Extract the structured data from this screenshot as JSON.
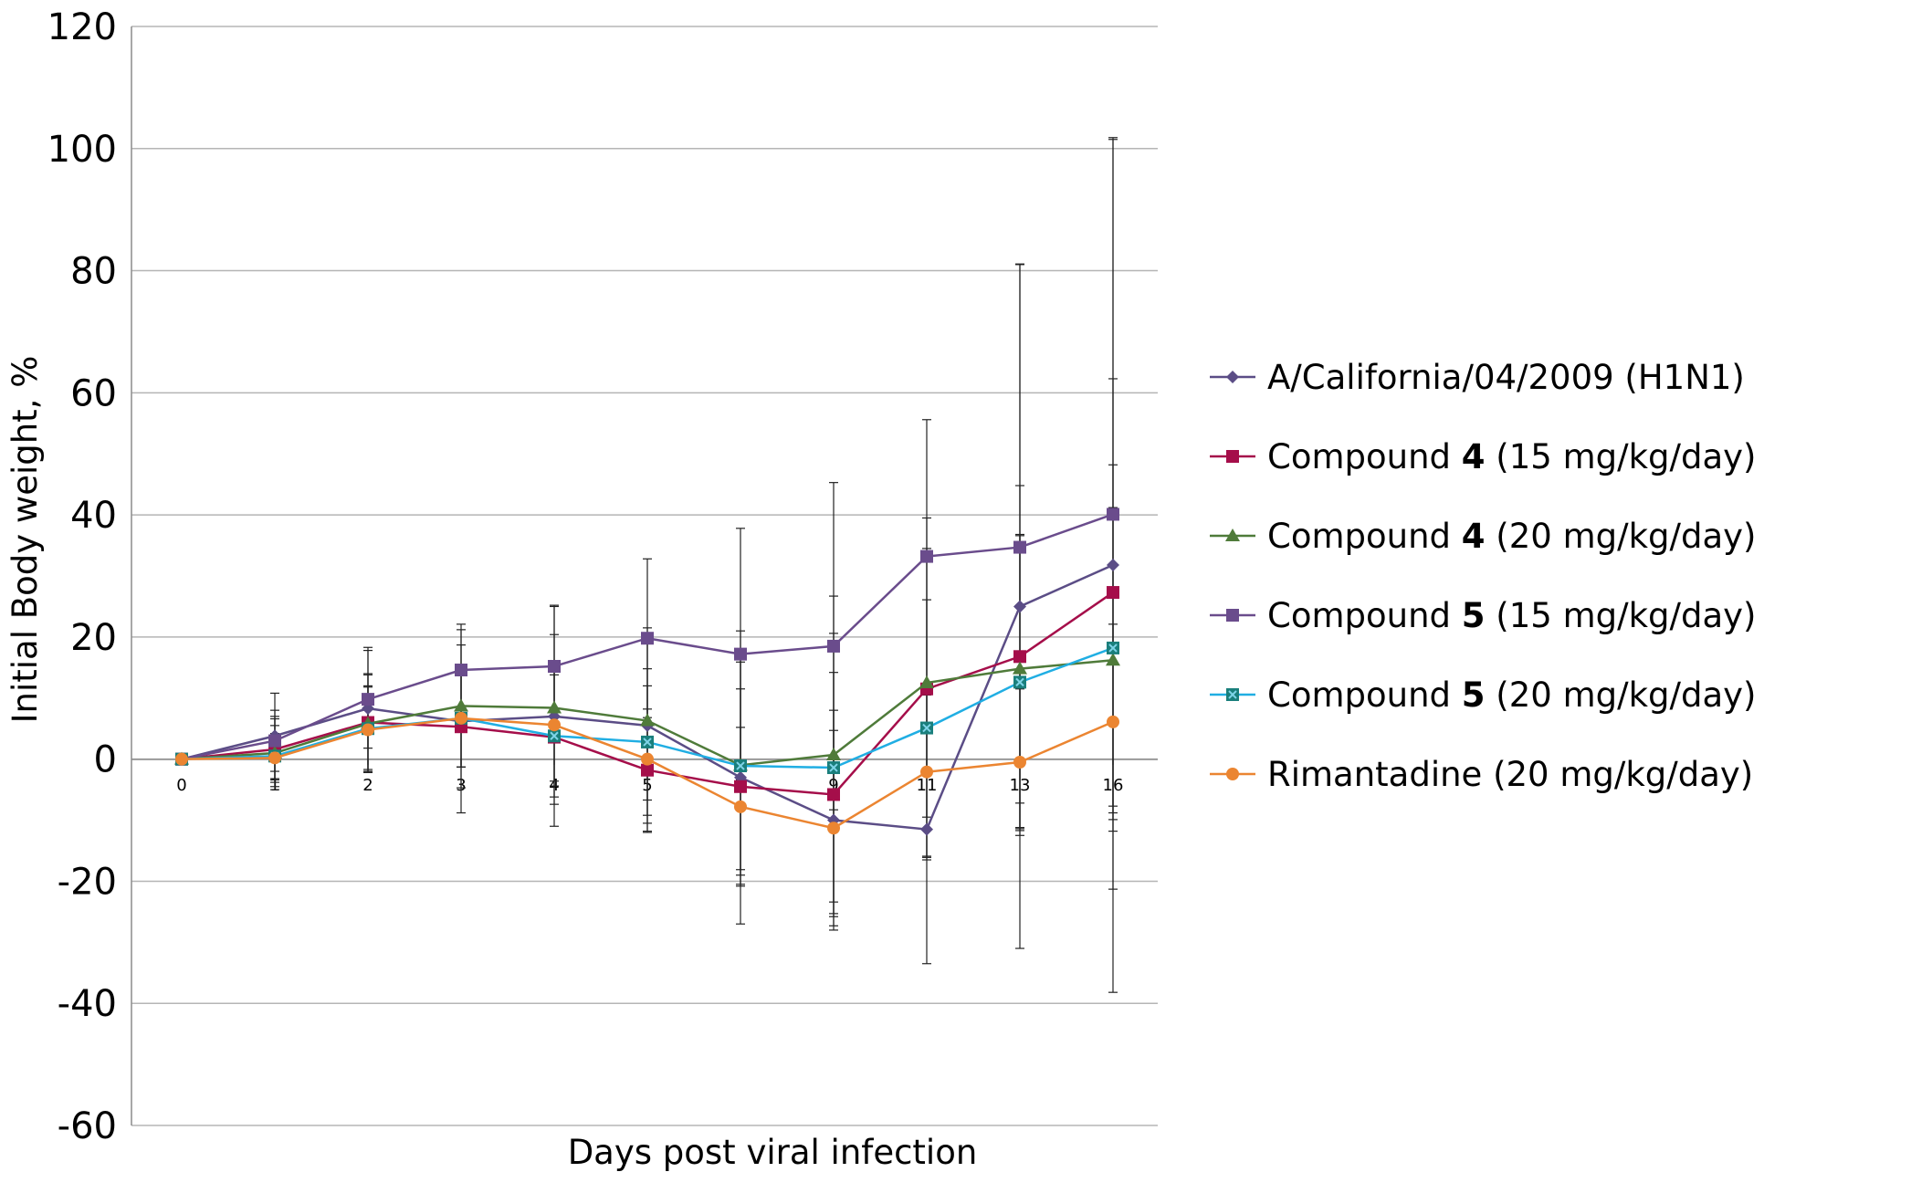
{
  "chart_data": {
    "type": "line",
    "title": "",
    "xlabel": "Days post viral infection",
    "ylabel": "Initial Body weight, %",
    "ylim": [
      -60,
      120
    ],
    "yticks": [
      -60,
      -40,
      -20,
      0,
      20,
      40,
      60,
      80,
      100,
      120
    ],
    "categories": [
      "0",
      "1",
      "2",
      "3",
      "4",
      "5",
      "",
      "9",
      "11",
      "13",
      "16"
    ],
    "grid": true,
    "legend_position": "right",
    "series": [
      {
        "name": "A/California/04/2009 (H1N1)",
        "label_parts": [
          {
            "text": "A/California/04/2009 (H1N1)",
            "bold": false
          }
        ],
        "color": "#5B4D86",
        "marker": "diamond",
        "values": [
          0,
          3.8,
          8.3,
          6.2,
          7.0,
          5.5,
          -3.0,
          -10.0,
          -11.5,
          25.0,
          31.8
        ],
        "errors": [
          0,
          7,
          10,
          15,
          18,
          16,
          24,
          18,
          22,
          56,
          70
        ]
      },
      {
        "name": "Compound 4 (15 mg/kg/day)",
        "label_parts": [
          {
            "text": "Compound ",
            "bold": false
          },
          {
            "text": "4",
            "bold": true
          },
          {
            "text": " (15 mg/kg/day)",
            "bold": false
          }
        ],
        "color": "#A50E4A",
        "marker": "square",
        "values": [
          0,
          1.6,
          6.0,
          5.3,
          3.6,
          -1.8,
          -4.5,
          -5.8,
          11.5,
          16.8,
          27.3
        ],
        "errors": [
          0,
          5,
          8,
          10,
          11,
          10,
          16,
          20,
          28,
          28,
          35
        ]
      },
      {
        "name": "Compound 4 (20 mg/kg/day)",
        "label_parts": [
          {
            "text": "Compound ",
            "bold": false
          },
          {
            "text": "4",
            "bold": true
          },
          {
            "text": " (20 mg/kg/day)",
            "bold": false
          }
        ],
        "color": "#4F7B3A",
        "marker": "triangle",
        "values": [
          0,
          1.0,
          5.8,
          8.7,
          8.4,
          6.3,
          -1.0,
          0.7,
          12.5,
          14.8,
          16.2
        ],
        "errors": [
          0,
          6,
          8,
          10,
          12,
          13,
          18,
          26,
          22,
          22,
          25
        ]
      },
      {
        "name": "Compound 5 (15 mg/kg/day)",
        "label_parts": [
          {
            "text": "Compound ",
            "bold": false
          },
          {
            "text": "5",
            "bold": true
          },
          {
            "text": " (15 mg/kg/day)",
            "bold": false
          }
        ],
        "color": "#6A4C8C",
        "marker": "square",
        "values": [
          0,
          3.0,
          9.8,
          14.6,
          15.2,
          19.8,
          17.2,
          18.5,
          33.2,
          34.7,
          40.1
        ],
        "errors": [
          0,
          5,
          8,
          7.5,
          10,
          13,
          20.6,
          26.8,
          22.4,
          46.4,
          61.4
        ]
      },
      {
        "name": "Compound 5 (20 mg/kg/day)",
        "label_parts": [
          {
            "text": "Compound ",
            "bold": false
          },
          {
            "text": "5",
            "bold": true
          },
          {
            "text": " (20 mg/kg/day)",
            "bold": false
          }
        ],
        "color": "#20AEE3",
        "marker": "square-x",
        "values": [
          0,
          0.5,
          5.0,
          6.7,
          3.8,
          2.8,
          -1.1,
          -1.4,
          5.1,
          12.6,
          18.2
        ],
        "errors": [
          0,
          5,
          7,
          8,
          10,
          12,
          17,
          22,
          21,
          24,
          30
        ]
      },
      {
        "name": "Rimantadine (20 mg/kg/day)",
        "label_parts": [
          {
            "text": "Rimantadine (20 mg/kg/day)",
            "bold": false
          }
        ],
        "color": "#EB8531",
        "marker": "circle",
        "values": [
          0,
          0.2,
          4.8,
          6.7,
          5.6,
          0.0,
          -7.8,
          -11.3,
          -2.1,
          -0.5,
          6.1
        ],
        "errors": [
          0,
          4,
          7,
          8,
          10,
          12,
          13,
          16,
          14,
          12,
          16
        ]
      }
    ]
  }
}
